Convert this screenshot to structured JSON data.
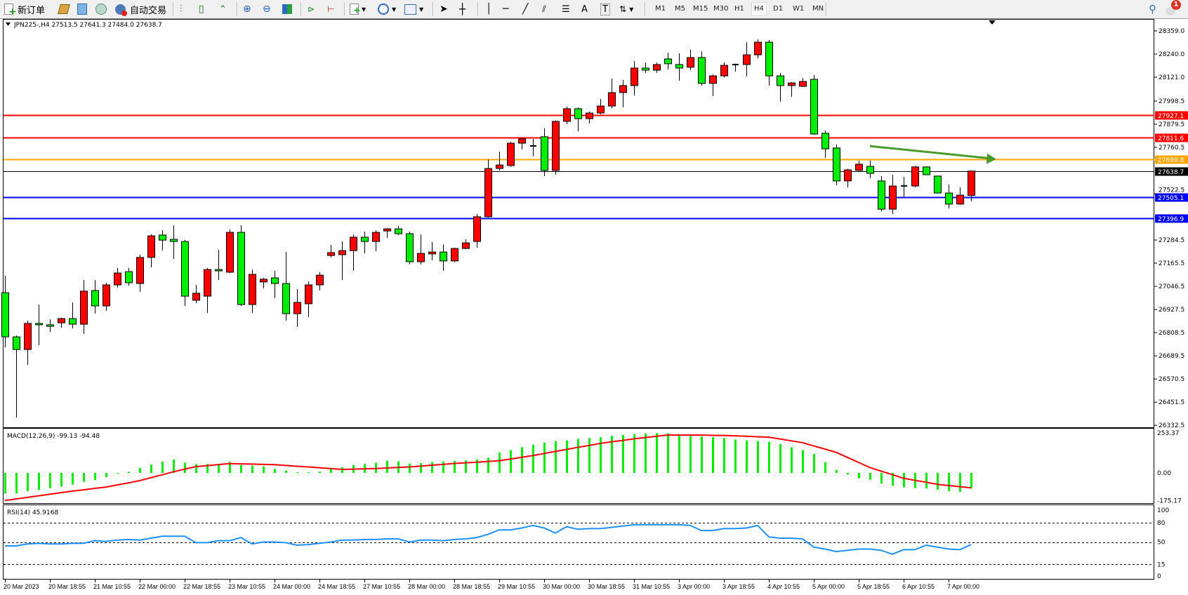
{
  "toolbar": {
    "new_order_label": "新订单",
    "auto_trading_label": "自动交易",
    "timeframes": [
      "M1",
      "M5",
      "M15",
      "M30",
      "H1",
      "H4",
      "D1",
      "W1",
      "MN"
    ],
    "active_timeframe": "H4",
    "notification_count": "1",
    "icons": [
      "new-order-icon",
      "market-watch-icon",
      "navigator-icon",
      "signals-icon",
      "auto-trading-icon",
      "bar-chart-icon",
      "candlestick-icon",
      "line-chart-icon",
      "zoom-in-icon",
      "zoom-out-icon",
      "tile-windows-icon",
      "autoscroll-icon",
      "chart-shift-icon",
      "indicators-icon",
      "periods-icon",
      "templates-icon",
      "cursor-icon",
      "crosshair-icon",
      "vertical-line-icon",
      "horizontal-line-icon",
      "trendline-icon",
      "equidistant-channel-icon",
      "fibonacci-icon",
      "text-icon",
      "text-label-icon",
      "arrows-icon",
      "search-icon",
      "notification-icon"
    ]
  },
  "chart": {
    "header": "JPN225-,H4  27513.5 27641.3 27484.0 27638.7",
    "colors": {
      "bull": "#ff0000",
      "bear": "#00ee00",
      "macd_hist": "#00ee00",
      "macd_signal": "#ff0000",
      "rsi": "#1e90ff",
      "arrow": "#4a9a2a"
    },
    "price_ticks": [
      "28359.0",
      "28240.0",
      "28121.0",
      "27998.5",
      "27879.5",
      "27760.5",
      "27522.5",
      "27284.5",
      "27165.5",
      "27046.5",
      "26927.5",
      "26808.5",
      "26689.5",
      "26570.5",
      "26451.5",
      "26332.5"
    ],
    "hlines": [
      {
        "price": "27927.1",
        "color": "#ff0000"
      },
      {
        "price": "27811.6",
        "color": "#ff0000"
      },
      {
        "price": "27699.8",
        "color": "#ffa500"
      },
      {
        "price": "27638.7",
        "color": "#000000"
      },
      {
        "price": "27505.1",
        "color": "#0000ff"
      },
      {
        "price": "27396.9",
        "color": "#0000ff"
      }
    ],
    "time_labels": [
      "20 Mar 2023",
      "20 Mar 18:55",
      "21 Mar 10:55",
      "22 Mar 00:00",
      "22 Mar 18:55",
      "23 Mar 10:55",
      "24 Mar 00:00",
      "24 Mar 18:55",
      "27 Mar 10:55",
      "28 Mar 00:00",
      "28 Mar 18:55",
      "29 Mar 10:55",
      "30 Mar 00:00",
      "30 Mar 18:55",
      "31 Mar 10:55",
      "3 Apr 00:00",
      "3 Apr 18:55",
      "4 Apr 10:55",
      "5 Apr 00:00",
      "5 Apr 18:55",
      "6 Apr 10:55",
      "7 Apr 00:00"
    ],
    "candles_ohlc": [
      [
        27014,
        27101,
        26733,
        26787
      ],
      [
        26787,
        26794,
        26373,
        26722
      ],
      [
        26722,
        26870,
        26643,
        26856
      ],
      [
        26856,
        26953,
        26744,
        26849
      ],
      [
        26849,
        26877,
        26812,
        26841
      ],
      [
        26859,
        26885,
        26834,
        26881
      ],
      [
        26881,
        26964,
        26830,
        26852
      ],
      [
        26852,
        27079,
        26802,
        27022
      ],
      [
        27025,
        27079,
        26906,
        26946
      ],
      [
        26946,
        27065,
        26921,
        27054
      ],
      [
        27054,
        27141,
        27040,
        27115
      ],
      [
        27122,
        27141,
        27050,
        27065
      ],
      [
        27061,
        27209,
        27018,
        27195
      ],
      [
        27195,
        27313,
        27144,
        27306
      ],
      [
        27310,
        27335,
        27231,
        27284
      ],
      [
        27288,
        27360,
        27187,
        27277
      ],
      [
        27277,
        27285,
        26946,
        26996
      ],
      [
        26975,
        27054,
        26960,
        27011
      ],
      [
        26996,
        27141,
        26910,
        27133
      ],
      [
        27133,
        27234,
        27079,
        27126
      ],
      [
        27119,
        27339,
        27115,
        27324
      ],
      [
        27324,
        27360,
        26946,
        26953
      ],
      [
        26953,
        27133,
        26910,
        27108
      ],
      [
        27069,
        27090,
        27036,
        27083
      ],
      [
        27090,
        27126,
        26985,
        27061
      ],
      [
        27061,
        27223,
        26870,
        26906
      ],
      [
        26906,
        27032,
        26838,
        26964
      ],
      [
        26957,
        27072,
        26888,
        27054
      ],
      [
        27054,
        27119,
        27025,
        27104
      ],
      [
        27205,
        27259,
        27195,
        27220
      ],
      [
        27209,
        27277,
        27079,
        27230
      ],
      [
        27230,
        27313,
        27126,
        27299
      ],
      [
        27299,
        27328,
        27216,
        27277
      ],
      [
        27277,
        27335,
        27227,
        27324
      ],
      [
        27331,
        27345,
        27295,
        27342
      ],
      [
        27342,
        27357,
        27310,
        27317
      ],
      [
        27317,
        27328,
        27160,
        27173
      ],
      [
        27173,
        27313,
        27159,
        27216
      ],
      [
        27213,
        27274,
        27180,
        27223
      ],
      [
        27223,
        27262,
        27126,
        27177
      ],
      [
        27177,
        27245,
        27170,
        27241
      ],
      [
        27241,
        27288,
        27238,
        27270
      ],
      [
        27277,
        27418,
        27245,
        27404
      ],
      [
        27404,
        27699,
        27400,
        27652
      ],
      [
        27652,
        27739,
        27641,
        27670
      ],
      [
        27667,
        27790,
        27660,
        27782
      ],
      [
        27782,
        27811,
        27750,
        27804
      ],
      [
        27768,
        27804,
        27714,
        27768
      ],
      [
        27815,
        27858,
        27613,
        27642
      ],
      [
        27642,
        27900,
        27620,
        27894
      ],
      [
        27894,
        27970,
        27880,
        27959
      ],
      [
        27959,
        27966,
        27843,
        27908
      ],
      [
        27908,
        27945,
        27883,
        27937
      ],
      [
        27937,
        28009,
        27930,
        27973
      ],
      [
        27973,
        28114,
        27962,
        28042
      ],
      [
        28042,
        28107,
        27966,
        28078
      ],
      [
        28078,
        28204,
        28027,
        28168
      ],
      [
        28168,
        28197,
        28143,
        28157
      ],
      [
        28157,
        28197,
        28143,
        28186
      ],
      [
        28215,
        28247,
        28161,
        28190
      ],
      [
        28186,
        28244,
        28103,
        28168
      ],
      [
        28172,
        28262,
        28157,
        28222
      ],
      [
        28222,
        28254,
        28078,
        28089
      ],
      [
        28089,
        28135,
        28024,
        28128
      ],
      [
        28128,
        28197,
        28120,
        28182
      ],
      [
        28186,
        28190,
        28150,
        28186
      ],
      [
        28186,
        28301,
        28125,
        28236
      ],
      [
        28236,
        28316,
        28218,
        28301
      ],
      [
        28301,
        28312,
        28078,
        28128
      ],
      [
        28128,
        28143,
        27995,
        28078
      ],
      [
        28078,
        28096,
        28020,
        28092
      ],
      [
        28074,
        28117,
        28070,
        28099
      ],
      [
        28110,
        28132,
        27825,
        27829
      ],
      [
        27833,
        27847,
        27707,
        27753
      ],
      [
        27757,
        27775,
        27566,
        27588
      ],
      [
        27588,
        27650,
        27555,
        27645
      ],
      [
        27642,
        27692,
        27635,
        27674
      ],
      [
        27663,
        27692,
        27602,
        27627
      ],
      [
        27588,
        27613,
        27432,
        27443
      ],
      [
        27443,
        27620,
        27418,
        27562
      ],
      [
        27562,
        27609,
        27501,
        27562
      ],
      [
        27562,
        27665,
        27555,
        27660
      ],
      [
        27660,
        27662,
        27618,
        27620
      ],
      [
        27613,
        27615,
        27524,
        27526
      ],
      [
        27526,
        27569,
        27447,
        27469
      ],
      [
        27469,
        27555,
        27465,
        27515
      ],
      [
        27513.5,
        27641.3,
        27484.0,
        27638.7
      ]
    ],
    "arrow_annotation": {
      "from_price": 27767,
      "to_price": 27700,
      "direction": "right-down"
    }
  },
  "macd": {
    "label": "MACD(12,26,9) -99.13 -94.48",
    "scale_labels": [
      "253.37",
      "0.00",
      "-175.17"
    ],
    "histogram": [
      -130,
      -130,
      -115,
      -108,
      -96,
      -86,
      -74,
      -56,
      -44,
      -27,
      -4,
      7,
      31,
      52,
      71,
      84,
      65,
      56,
      56,
      50,
      70,
      50,
      47,
      41,
      25,
      15,
      4,
      4,
      9,
      22,
      36,
      50,
      56,
      65,
      77,
      73,
      59,
      62,
      68,
      72,
      77,
      80,
      85,
      96,
      130,
      144,
      163,
      178,
      192,
      202,
      206,
      216,
      221,
      226,
      235,
      240,
      245,
      250,
      252,
      250,
      245,
      235,
      230,
      226,
      221,
      211,
      206,
      202,
      197,
      182,
      163,
      144,
      120,
      67,
      19,
      -10,
      -34,
      -43,
      -67,
      -82,
      -91,
      -96,
      -99,
      -106,
      -115,
      -120,
      -99.13
    ],
    "signal": [
      -175,
      -165,
      -155,
      -145,
      -135,
      -125,
      -115,
      -107,
      -98,
      -90,
      -76,
      -63,
      -49,
      -30,
      -12,
      7,
      24,
      40,
      46,
      53,
      59,
      57,
      56,
      54,
      52,
      47,
      42,
      38,
      33,
      27,
      22,
      24,
      26,
      28,
      31,
      35,
      38,
      43,
      49,
      54,
      60,
      64,
      68,
      73,
      77,
      88,
      99,
      110,
      123,
      136,
      149,
      162,
      174,
      187,
      197,
      206,
      216,
      224,
      232,
      240,
      240,
      240,
      240,
      238,
      237,
      235,
      232,
      229,
      226,
      215,
      203,
      192,
      171,
      151,
      130,
      98,
      66,
      34,
      11,
      -11,
      -34,
      -47,
      -59,
      -72,
      -80,
      -87,
      -94.48
    ]
  },
  "rsi": {
    "label": "RSI(14) 45.9168",
    "scale_labels": [
      "100",
      "80",
      "50",
      "15",
      "0"
    ],
    "levels": [
      80,
      50,
      15
    ],
    "values": [
      44,
      44,
      47,
      48,
      47,
      47,
      48,
      48,
      52,
      51,
      53,
      54,
      53,
      56,
      59,
      59,
      59,
      49,
      49,
      52,
      52,
      57,
      47,
      50,
      50,
      49,
      45,
      46,
      48,
      50,
      53,
      53,
      54,
      54,
      55,
      55,
      50,
      53,
      53,
      52,
      54,
      55,
      57,
      62,
      69,
      69,
      72,
      76,
      72,
      64,
      74,
      70,
      71,
      71,
      73,
      75,
      77,
      77,
      77,
      77,
      77,
      76,
      68,
      68,
      71,
      71,
      72,
      76,
      58,
      56,
      56,
      55,
      42,
      39,
      35,
      37,
      39,
      39,
      37,
      31,
      38,
      38,
      45,
      42,
      39,
      38,
      45.9168
    ]
  }
}
